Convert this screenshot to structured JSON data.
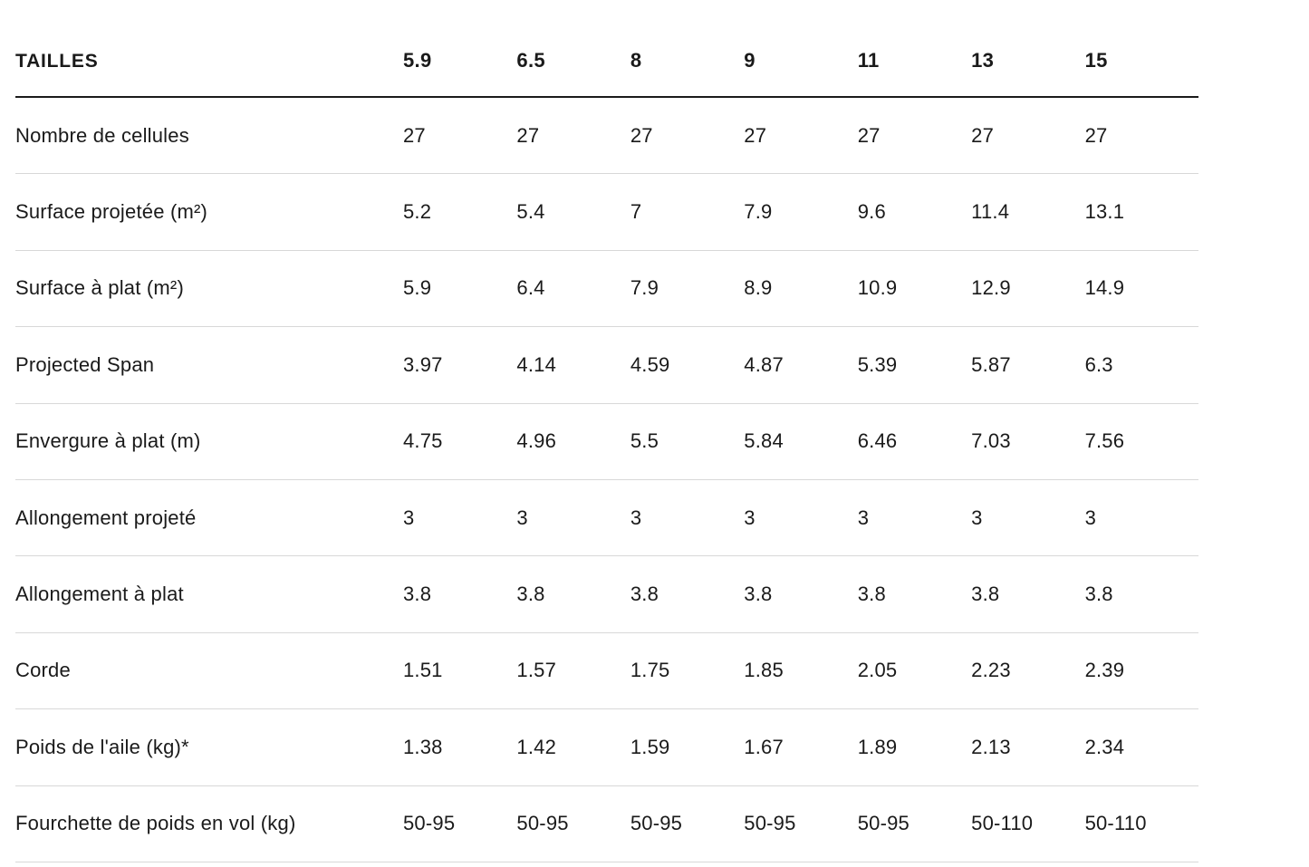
{
  "table": {
    "header": {
      "label": "TAILLES",
      "sizes": [
        "5.9",
        "6.5",
        "8",
        "9",
        "11",
        "13",
        "15"
      ]
    },
    "rows": [
      {
        "label": "Nombre de cellules",
        "values": [
          "27",
          "27",
          "27",
          "27",
          "27",
          "27",
          "27"
        ]
      },
      {
        "label": "Surface projetée (m²)",
        "values": [
          "5.2",
          "5.4",
          "7",
          "7.9",
          "9.6",
          "11.4",
          "13.1"
        ]
      },
      {
        "label": "Surface à plat (m²)",
        "values": [
          "5.9",
          "6.4",
          "7.9",
          "8.9",
          "10.9",
          "12.9",
          "14.9"
        ]
      },
      {
        "label": "Projected Span",
        "values": [
          "3.97",
          "4.14",
          "4.59",
          "4.87",
          "5.39",
          "5.87",
          "6.3"
        ]
      },
      {
        "label": "Envergure à plat (m)",
        "values": [
          "4.75",
          "4.96",
          "5.5",
          "5.84",
          "6.46",
          "7.03",
          "7.56"
        ]
      },
      {
        "label": "Allongement projeté",
        "values": [
          "3",
          "3",
          "3",
          "3",
          "3",
          "3",
          "3"
        ]
      },
      {
        "label": "Allongement à plat",
        "values": [
          "3.8",
          "3.8",
          "3.8",
          "3.8",
          "3.8",
          "3.8",
          "3.8"
        ]
      },
      {
        "label": "Corde",
        "values": [
          "1.51",
          "1.57",
          "1.75",
          "1.85",
          "2.05",
          "2.23",
          "2.39"
        ]
      },
      {
        "label": "Poids de l'aile (kg)*",
        "values": [
          "1.38",
          "1.42",
          "1.59",
          "1.67",
          "1.89",
          "2.13",
          "2.34"
        ]
      },
      {
        "label": "Fourchette de poids en vol (kg)",
        "values": [
          "50-95",
          "50-95",
          "50-95",
          "50-95",
          "50-95",
          "50-110",
          "50-110"
        ]
      }
    ],
    "colors": {
      "text": "#1a1a1a",
      "divider": "#d8d8d8",
      "header_rule": "#1a1a1a",
      "background": "#ffffff"
    }
  }
}
